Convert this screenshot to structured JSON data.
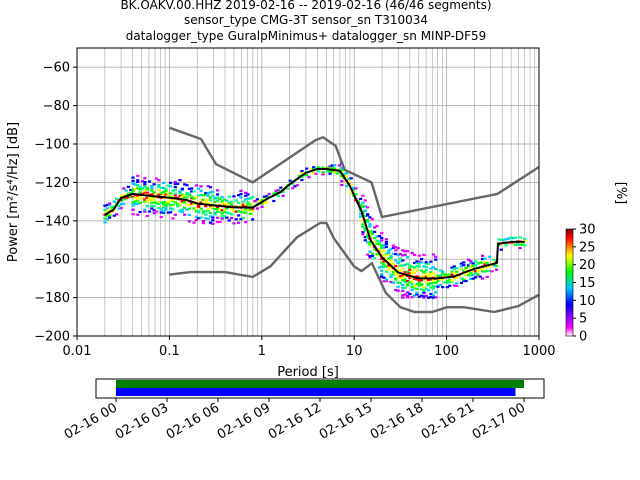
{
  "chart_data": {
    "type": "line",
    "title_lines": [
      "BK.OAKV.00.HHZ   2019-02-16 -- 2019-02-16  (46/46 segments)",
      "sensor_type CMG-3T sensor_sn T310034",
      "datalogger_type GuralpMinimus+ datalogger_sn MINP-DF59"
    ],
    "xlabel": "Period [s]",
    "ylabel": "Power [m²/s⁴/Hz] [dB]",
    "xscale": "log",
    "xlim": [
      0.01,
      1000
    ],
    "ylim": [
      -200,
      -50
    ],
    "grid": true,
    "x_ticks": [
      {
        "value": 0.01,
        "label": "0.01"
      },
      {
        "value": 0.1,
        "label": "0.1"
      },
      {
        "value": 1,
        "label": "1"
      },
      {
        "value": 10,
        "label": "10"
      },
      {
        "value": 100,
        "label": "100"
      },
      {
        "value": 1000,
        "label": "1000"
      }
    ],
    "y_ticks": [
      {
        "value": -60,
        "label": "−60"
      },
      {
        "value": -80,
        "label": "−80"
      },
      {
        "value": -100,
        "label": "−100"
      },
      {
        "value": -120,
        "label": "−120"
      },
      {
        "value": -140,
        "label": "−140"
      },
      {
        "value": -160,
        "label": "−160"
      },
      {
        "value": -180,
        "label": "−180"
      },
      {
        "value": -200,
        "label": "−200"
      }
    ],
    "series": [
      {
        "role": "nhnm",
        "color": "#666666",
        "x": [
          0.1,
          0.22,
          0.32,
          0.8,
          3.8,
          4.6,
          6.3,
          7.9,
          15.4,
          20,
          354.8,
          1000
        ],
        "y": [
          -91.5,
          -97.4,
          -110.5,
          -120,
          -98,
          -96.5,
          -101,
          -113.5,
          -120,
          -138,
          -126,
          -112
        ]
      },
      {
        "role": "nlnm",
        "color": "#666666",
        "x": [
          0.1,
          0.17,
          0.4,
          0.8,
          1.24,
          2.4,
          4.3,
          5.0,
          6.0,
          10,
          12,
          15.6,
          21.9,
          31.6,
          45,
          70,
          101,
          154,
          328,
          600,
          1000
        ],
        "y": [
          -168,
          -166.7,
          -166.7,
          -169.2,
          -163.7,
          -148.6,
          -141.1,
          -141.1,
          -149,
          -163.8,
          -166.2,
          -162.1,
          -177.5,
          -185,
          -187.5,
          -187.5,
          -185,
          -185,
          -187.5,
          -184.4,
          -178.5
        ]
      },
      {
        "role": "mean",
        "color": "#000000",
        "x": [
          0.02,
          0.025,
          0.03,
          0.04,
          0.06,
          0.1,
          0.15,
          0.2,
          0.3,
          0.5,
          0.8,
          1.2,
          1.6,
          2,
          3,
          4,
          5,
          7,
          9,
          12,
          15,
          20,
          30,
          50,
          80,
          120,
          200,
          350,
          360,
          500,
          700
        ],
        "y": [
          -137,
          -134,
          -128,
          -126,
          -127,
          -128,
          -129,
          -131,
          -132,
          -133,
          -133,
          -128,
          -125,
          -121,
          -115,
          -113,
          -113,
          -114,
          -122,
          -135,
          -150,
          -159,
          -167,
          -170,
          -170,
          -169,
          -165,
          -162,
          -152,
          -151,
          -151
        ]
      }
    ],
    "colorbar": {
      "label": "[%]",
      "range": [
        0,
        30
      ],
      "ticks": [
        {
          "value": 0,
          "label": "0"
        },
        {
          "value": 5,
          "label": "5"
        },
        {
          "value": 10,
          "label": "10"
        },
        {
          "value": 15,
          "label": "15"
        },
        {
          "value": 20,
          "label": "20"
        },
        {
          "value": 25,
          "label": "25"
        },
        {
          "value": 30,
          "label": "30"
        }
      ],
      "colors": [
        "#ffffff",
        "#ff00ff",
        "#0000ff",
        "#00c8ff",
        "#00ff00",
        "#ffff00",
        "#ff0000",
        "#800000"
      ]
    },
    "coverage": {
      "time_ticks": [
        "02-16 00",
        "02-16 03",
        "02-16 06",
        "02-16 09",
        "02-16 12",
        "02-16 15",
        "02-16 18",
        "02-16 21",
        "02-17 00"
      ],
      "bars": [
        {
          "role": "data",
          "color": "#008000",
          "start_h": 0,
          "end_h": 24
        },
        {
          "role": "used",
          "color": "#0000ff",
          "start_h": 0,
          "end_h": 23.5
        }
      ]
    }
  }
}
